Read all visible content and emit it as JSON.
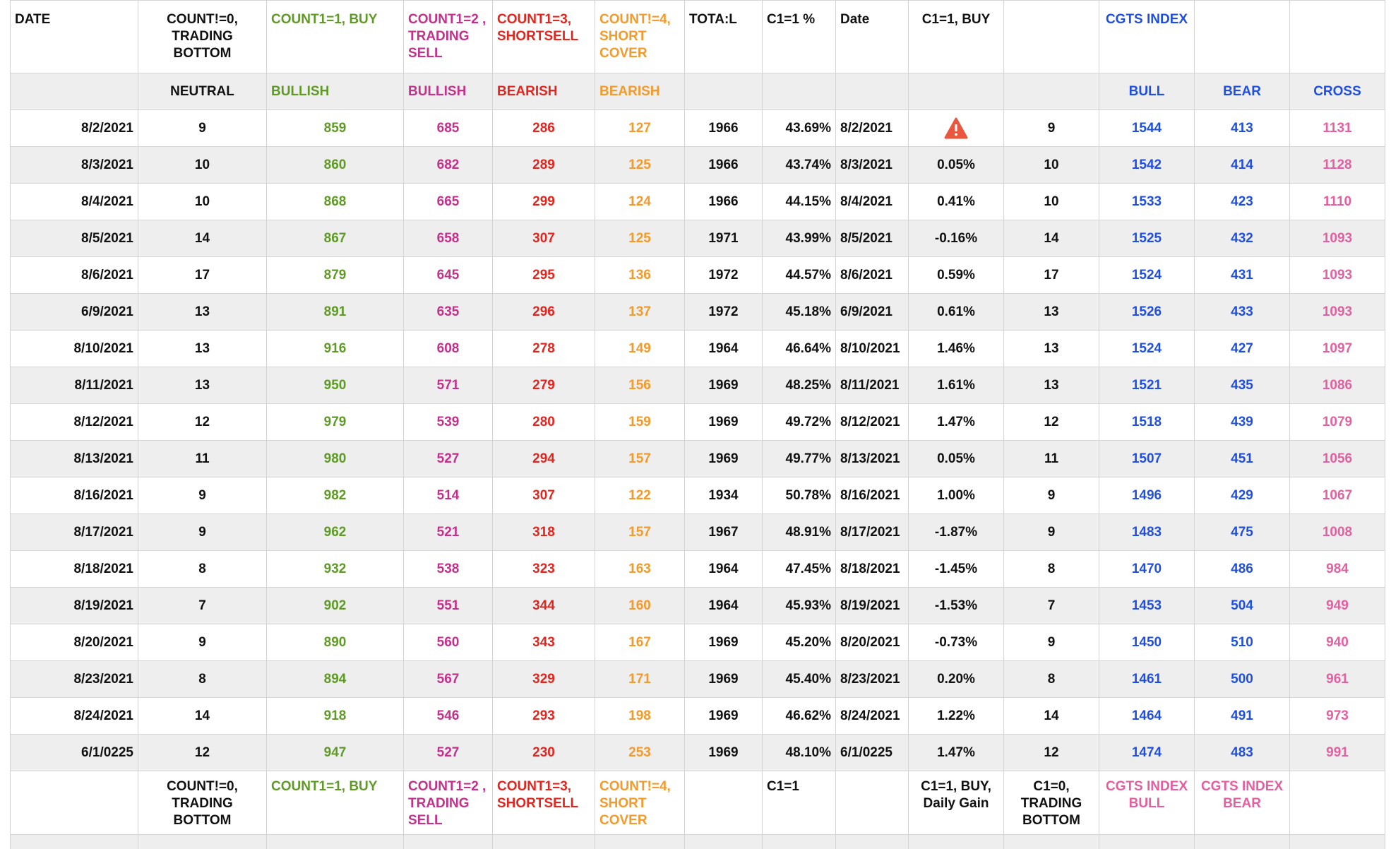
{
  "header": {
    "date": "DATE",
    "count0": "COUNT!=0, TRADING BOTTOM",
    "count1": "COUNT1=1, BUY",
    "count2": "COUNT1=2 , TRADING SELL",
    "count3": "COUNT1=3, SHORTSELL",
    "count4": "COUNT!=4, SHORT COVER",
    "total": "TOTA:L",
    "c1pct": "C1=1 %",
    "date2": "Date",
    "c1buy": "C1=1, BUY",
    "blank": "",
    "cgts": "CGTS INDEX"
  },
  "subheader": {
    "neutral": "NEUTRAL",
    "bullish1": "BULLISH",
    "bullish2": "BULLISH",
    "bearish1": "BEARISH",
    "bearish2": "BEARISH",
    "bull": "BULL",
    "bear": "BEAR",
    "cross": "CROSS"
  },
  "rows": [
    {
      "date": "8/2/2021",
      "c0": "9",
      "c1": "859",
      "c2": "685",
      "c3": "286",
      "c4": "127",
      "total": "1966",
      "pct": "43.69%",
      "date2": "8/2/2021",
      "gain": "",
      "warning": true,
      "tb": "9",
      "bull": "1544",
      "bear": "413",
      "cross": "1131"
    },
    {
      "date": "8/3/2021",
      "c0": "10",
      "c1": "860",
      "c2": "682",
      "c3": "289",
      "c4": "125",
      "total": "1966",
      "pct": "43.74%",
      "date2": "8/3/2021",
      "gain": "0.05%",
      "tb": "10",
      "bull": "1542",
      "bear": "414",
      "cross": "1128"
    },
    {
      "date": "8/4/2021",
      "c0": "10",
      "c1": "868",
      "c2": "665",
      "c3": "299",
      "c4": "124",
      "total": "1966",
      "pct": "44.15%",
      "date2": "8/4/2021",
      "gain": "0.41%",
      "tb": "10",
      "bull": "1533",
      "bear": "423",
      "cross": "1110"
    },
    {
      "date": "8/5/2021",
      "c0": "14",
      "c1": "867",
      "c2": "658",
      "c3": "307",
      "c4": "125",
      "total": "1971",
      "pct": "43.99%",
      "date2": "8/5/2021",
      "gain": "-0.16%",
      "tb": "14",
      "bull": "1525",
      "bear": "432",
      "cross": "1093"
    },
    {
      "date": "8/6/2021",
      "c0": "17",
      "c1": "879",
      "c2": "645",
      "c3": "295",
      "c4": "136",
      "total": "1972",
      "pct": "44.57%",
      "date2": "8/6/2021",
      "gain": "0.59%",
      "tb": "17",
      "bull": "1524",
      "bear": "431",
      "cross": "1093"
    },
    {
      "date": "6/9/2021",
      "c0": "13",
      "c1": "891",
      "c2": "635",
      "c3": "296",
      "c4": "137",
      "total": "1972",
      "pct": "45.18%",
      "date2": "6/9/2021",
      "gain": "0.61%",
      "tb": "13",
      "bull": "1526",
      "bear": "433",
      "cross": "1093"
    },
    {
      "date": "8/10/2021",
      "c0": "13",
      "c1": "916",
      "c2": "608",
      "c3": "278",
      "c4": "149",
      "total": "1964",
      "pct": "46.64%",
      "date2": "8/10/2021",
      "gain": "1.46%",
      "tb": "13",
      "bull": "1524",
      "bear": "427",
      "cross": "1097"
    },
    {
      "date": "8/11/2021",
      "c0": "13",
      "c1": "950",
      "c2": "571",
      "c3": "279",
      "c4": "156",
      "total": "1969",
      "pct": "48.25%",
      "date2": "8/11/2021",
      "gain": "1.61%",
      "tb": "13",
      "bull": "1521",
      "bear": "435",
      "cross": "1086"
    },
    {
      "date": "8/12/2021",
      "c0": "12",
      "c1": "979",
      "c2": "539",
      "c3": "280",
      "c4": "159",
      "total": "1969",
      "pct": "49.72%",
      "date2": "8/12/2021",
      "gain": "1.47%",
      "tb": "12",
      "bull": "1518",
      "bear": "439",
      "cross": "1079"
    },
    {
      "date": "8/13/2021",
      "c0": "11",
      "c1": "980",
      "c2": "527",
      "c3": "294",
      "c4": "157",
      "total": "1969",
      "pct": "49.77%",
      "date2": "8/13/2021",
      "gain": "0.05%",
      "tb": "11",
      "bull": "1507",
      "bear": "451",
      "cross": "1056"
    },
    {
      "date": "8/16/2021",
      "c0": "9",
      "c1": "982",
      "c2": "514",
      "c3": "307",
      "c4": "122",
      "total": "1934",
      "pct": "50.78%",
      "date2": "8/16/2021",
      "gain": "1.00%",
      "tb": "9",
      "bull": "1496",
      "bear": "429",
      "cross": "1067"
    },
    {
      "date": "8/17/2021",
      "c0": "9",
      "c1": "962",
      "c2": "521",
      "c3": "318",
      "c4": "157",
      "total": "1967",
      "pct": "48.91%",
      "date2": "8/17/2021",
      "gain": "-1.87%",
      "tb": "9",
      "bull": "1483",
      "bear": "475",
      "cross": "1008"
    },
    {
      "date": "8/18/2021",
      "c0": "8",
      "c1": "932",
      "c2": "538",
      "c3": "323",
      "c4": "163",
      "total": "1964",
      "pct": "47.45%",
      "date2": "8/18/2021",
      "gain": "-1.45%",
      "tb": "8",
      "bull": "1470",
      "bear": "486",
      "cross": "984"
    },
    {
      "date": "8/19/2021",
      "c0": "7",
      "c1": "902",
      "c2": "551",
      "c3": "344",
      "c4": "160",
      "total": "1964",
      "pct": "45.93%",
      "date2": "8/19/2021",
      "gain": "-1.53%",
      "tb": "7",
      "bull": "1453",
      "bear": "504",
      "cross": "949"
    },
    {
      "date": "8/20/2021",
      "c0": "9",
      "c1": "890",
      "c2": "560",
      "c3": "343",
      "c4": "167",
      "total": "1969",
      "pct": "45.20%",
      "date2": "8/20/2021",
      "gain": "-0.73%",
      "tb": "9",
      "bull": "1450",
      "bear": "510",
      "cross": "940"
    },
    {
      "date": "8/23/2021",
      "c0": "8",
      "c1": "894",
      "c2": "567",
      "c3": "329",
      "c4": "171",
      "total": "1969",
      "pct": "45.40%",
      "date2": "8/23/2021",
      "gain": "0.20%",
      "tb": "8",
      "bull": "1461",
      "bear": "500",
      "cross": "961"
    },
    {
      "date": "8/24/2021",
      "c0": "14",
      "c1": "918",
      "c2": "546",
      "c3": "293",
      "c4": "198",
      "total": "1969",
      "pct": "46.62%",
      "date2": "8/24/2021",
      "gain": "1.22%",
      "tb": "14",
      "bull": "1464",
      "bear": "491",
      "cross": "973"
    },
    {
      "date": "6/1/0225",
      "c0": "12",
      "c1": "947",
      "c2": "527",
      "c3": "230",
      "c4": "253",
      "total": "1969",
      "pct": "48.10%",
      "date2": "6/1/0225",
      "gain": "1.47%",
      "tb": "12",
      "bull": "1474",
      "bear": "483",
      "cross": "991"
    }
  ],
  "footer": {
    "count0": "COUNT!=0, TRADING BOTTOM",
    "count1": "COUNT1=1, BUY",
    "count2": "COUNT1=2 , TRADING SELL",
    "count3": "COUNT1=3, SHORTSELL",
    "count4": "COUNT!=4, SHORT COVER",
    "c1": "C1=1",
    "c1gain": "C1=1, BUY, Daily Gain",
    "c0tb": "C1=0, TRADING BOTTOM",
    "cgtsbull": "CGTS INDEX BULL",
    "cgtsbear": "CGTS INDEX BEAR"
  },
  "colors": {
    "black": "#111111",
    "green": "#5f9a26",
    "magenta": "#c2318a",
    "red": "#e0261e",
    "orange": "#f39a2c",
    "blue": "#1f4fe0",
    "pink": "#e45fa0",
    "row_alt": "#eeeeee",
    "gridline": "#d4d4d4"
  },
  "icons": {
    "warning": "warning-triangle-icon"
  }
}
